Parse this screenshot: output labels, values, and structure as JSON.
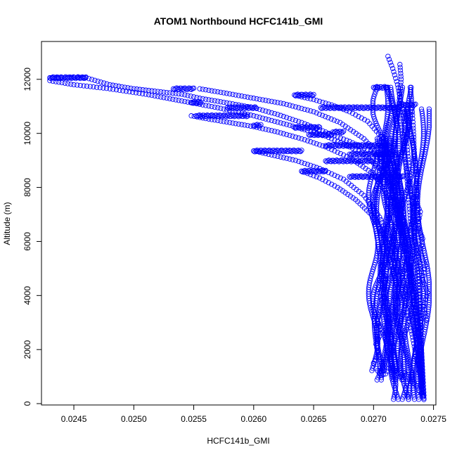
{
  "chart_data": {
    "type": "scatter",
    "title": "ATOM1 Northbound HCFC141b_GMI",
    "xlabel": "HCFC141b_GMI",
    "ylabel": "Altitude (m)",
    "xlim": [
      0.02423,
      0.02752
    ],
    "ylim": [
      -50,
      13400
    ],
    "x_ticks": [
      0.0245,
      0.025,
      0.0255,
      0.026,
      0.0265,
      0.027,
      0.0275
    ],
    "x_tick_labels": [
      "0.0245",
      "0.0250",
      "0.0255",
      "0.0260",
      "0.0265",
      "0.0270",
      "0.0275"
    ],
    "y_ticks": [
      0,
      2000,
      4000,
      6000,
      8000,
      10000,
      12000
    ],
    "y_tick_labels": [
      "0",
      "2000",
      "4000",
      "6000",
      "8000",
      "10000",
      "12000"
    ],
    "marker": "open-circle",
    "color": "#0000ff",
    "grid": false,
    "legend": "none",
    "series": [
      {
        "x": [
          0.0243,
          0.02437,
          0.02445,
          0.02453,
          0.0246,
          0.0248,
          0.025,
          0.0252,
          0.0254,
          0.02555,
          0.02575,
          0.026,
          0.0262,
          0.0264,
          0.0266,
          0.0268,
          0.027,
          0.0271,
          0.02715,
          0.0272,
          0.02725,
          0.0273,
          0.02735,
          0.0274,
          0.02742
        ],
        "y": [
          12050,
          12060,
          12070,
          12075,
          12060,
          11800,
          11650,
          11550,
          11450,
          11300,
          11150,
          10950,
          10700,
          10400,
          10050,
          9700,
          9300,
          8800,
          8000,
          7000,
          5500,
          4000,
          2500,
          800,
          150
        ]
      },
      {
        "x": [
          0.0243,
          0.0245,
          0.0248,
          0.0251,
          0.0254,
          0.0257,
          0.026,
          0.0263,
          0.0266,
          0.0269,
          0.0271,
          0.0272,
          0.02728,
          0.02735,
          0.0274,
          0.02742
        ],
        "y": [
          11950,
          11800,
          11650,
          11450,
          11200,
          10950,
          10650,
          10300,
          9900,
          9300,
          8500,
          7200,
          5800,
          4000,
          1800,
          200
        ]
      },
      {
        "x": [
          0.02548,
          0.0256,
          0.0258,
          0.026,
          0.0262,
          0.0264,
          0.0266,
          0.0268,
          0.027,
          0.02715,
          0.02725,
          0.02732,
          0.02738,
          0.02741
        ],
        "y": [
          10650,
          10550,
          10400,
          10250,
          10050,
          9800,
          9500,
          9100,
          8500,
          7500,
          6200,
          4500,
          2500,
          300
        ]
      },
      {
        "x": [
          0.02555,
          0.02575,
          0.026,
          0.02625,
          0.0265,
          0.02672,
          0.02692,
          0.02708,
          0.02718,
          0.02726,
          0.02733,
          0.0274
        ],
        "y": [
          11650,
          11500,
          11300,
          11100,
          10800,
          10400,
          9800,
          9000,
          7800,
          6000,
          3800,
          400
        ]
      },
      {
        "x": [
          0.026,
          0.02615,
          0.02635,
          0.02655,
          0.02675,
          0.02692,
          0.02705,
          0.02715,
          0.02722,
          0.02729,
          0.02736,
          0.02741
        ],
        "y": [
          9350,
          9200,
          9000,
          8700,
          8300,
          7700,
          6900,
          6000,
          5000,
          3800,
          2200,
          500
        ]
      },
      {
        "x": [
          0.0264,
          0.02655,
          0.0267,
          0.02685,
          0.02698,
          0.02708,
          0.02716,
          0.02724,
          0.02731,
          0.02738
        ],
        "y": [
          8600,
          8350,
          8000,
          7550,
          7000,
          6300,
          5400,
          4200,
          2800,
          1200
        ]
      },
      {
        "x": [
          0.02635,
          0.0265,
          0.02665,
          0.0268,
          0.02695,
          0.02706,
          0.02714,
          0.02721,
          0.02728
        ],
        "y": [
          11400,
          11250,
          11050,
          10800,
          10450,
          9900,
          9100,
          7900,
          6300
        ]
      },
      {
        "x": [
          0.02702,
          0.02706,
          0.0271,
          0.02714,
          0.02718,
          0.02722,
          0.02726,
          0.0273,
          0.02734,
          0.02738,
          0.02741
        ],
        "y": [
          1300,
          1050,
          1100,
          1400,
          1200,
          1000,
          1150,
          900,
          750,
          500,
          250
        ]
      },
      {
        "x": [
          0.02712,
          0.02716,
          0.0272,
          0.02724,
          0.02728,
          0.02732,
          0.02736,
          0.02739,
          0.02742
        ],
        "y": [
          12850,
          12400,
          11800,
          10900,
          9500,
          7500,
          5200,
          2800,
          300
        ]
      },
      {
        "x": [
          0.02722,
          0.02723,
          0.02721,
          0.02724,
          0.02727,
          0.0273,
          0.02733,
          0.02736,
          0.02738,
          0.0274
        ],
        "y": [
          12550,
          12000,
          11000,
          10000,
          8800,
          7200,
          5600,
          3900,
          2300,
          600
        ]
      },
      {
        "x": [
          0.02732,
          0.02733,
          0.02734,
          0.02736,
          0.02737,
          0.02738,
          0.02739,
          0.0274,
          0.02741
        ],
        "y": [
          11050,
          10300,
          9300,
          8000,
          6600,
          5100,
          3600,
          2000,
          400
        ]
      },
      {
        "x": [
          0.027,
          0.02704,
          0.02702,
          0.02706,
          0.02703,
          0.02708,
          0.02705,
          0.0271,
          0.02707,
          0.02712,
          0.02715,
          0.0272
        ],
        "y": [
          1500,
          1800,
          2200,
          2600,
          3100,
          3600,
          4100,
          4600,
          5100,
          5600,
          6200,
          6800
        ]
      },
      {
        "x": [
          0.02744,
          0.02742,
          0.02745,
          0.02741,
          0.02743,
          0.02739,
          0.02741,
          0.02737,
          0.02739,
          0.02734
        ],
        "y": [
          3100,
          3600,
          4100,
          4600,
          5100,
          5600,
          6100,
          6600,
          7100,
          7600
        ]
      }
    ],
    "horizontal_segments": [
      {
        "y": 12060,
        "x_from": 0.0243,
        "x_to": 0.0246
      },
      {
        "y": 11650,
        "x_from": 0.02533,
        "x_to": 0.0255
      },
      {
        "y": 11150,
        "x_from": 0.02548,
        "x_to": 0.02556
      },
      {
        "y": 11420,
        "x_from": 0.02634,
        "x_to": 0.0265
      },
      {
        "y": 10650,
        "x_from": 0.02552,
        "x_to": 0.02595
      },
      {
        "y": 10950,
        "x_from": 0.02578,
        "x_to": 0.02602
      },
      {
        "y": 10300,
        "x_from": 0.026,
        "x_to": 0.02606
      },
      {
        "y": 10220,
        "x_from": 0.02634,
        "x_to": 0.02655
      },
      {
        "y": 9950,
        "x_from": 0.02646,
        "x_to": 0.02665
      },
      {
        "y": 10050,
        "x_from": 0.02666,
        "x_to": 0.02675
      },
      {
        "y": 10950,
        "x_from": 0.02656,
        "x_to": 0.02722
      },
      {
        "y": 11700,
        "x_from": 0.027,
        "x_to": 0.02712
      },
      {
        "y": 11050,
        "x_from": 0.02722,
        "x_to": 0.02735
      },
      {
        "y": 9350,
        "x_from": 0.026,
        "x_to": 0.0264
      },
      {
        "y": 9550,
        "x_from": 0.0266,
        "x_to": 0.02712
      },
      {
        "y": 9230,
        "x_from": 0.0268,
        "x_to": 0.0272
      },
      {
        "y": 8980,
        "x_from": 0.0266,
        "x_to": 0.027
      },
      {
        "y": 8600,
        "x_from": 0.0264,
        "x_to": 0.0266
      },
      {
        "y": 8400,
        "x_from": 0.0268,
        "x_to": 0.02725
      }
    ],
    "vertical_bands": [
      {
        "x_from": 0.02703,
        "x_to": 0.02732,
        "y_from": 800,
        "y_to": 11700
      },
      {
        "x_from": 0.02712,
        "x_to": 0.02744,
        "y_from": 150,
        "y_to": 10900
      },
      {
        "x_from": 0.02698,
        "x_to": 0.02722,
        "y_from": 1200,
        "y_to": 9800
      }
    ]
  }
}
